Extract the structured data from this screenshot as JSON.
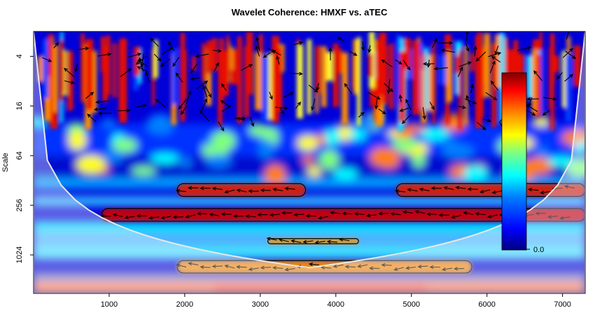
{
  "chart_data": {
    "type": "heatmap",
    "title": "Wavelet Coherence: HMXF vs. aTEC",
    "xlabel": "",
    "ylabel": "Scale",
    "x_range": [
      0,
      7300
    ],
    "x_ticks": [
      1000,
      2000,
      3000,
      4000,
      5000,
      6000,
      7000
    ],
    "y_scale": "log2",
    "y_range": [
      2,
      3000
    ],
    "y_ticks": [
      4,
      16,
      64,
      256,
      1024
    ],
    "colorbar": {
      "min": 0.0,
      "max": 1.0,
      "tick_labels": [
        "0.0"
      ],
      "palette": [
        "#00007f",
        "#0000ff",
        "#007fff",
        "#00ffff",
        "#7fff7f",
        "#ffff00",
        "#ff7f00",
        "#ff0000",
        "#7f0000"
      ]
    },
    "coherent_regions": [
      {
        "scale_band": "2-24",
        "x_range": [
          0,
          7300
        ],
        "coherence": "high, intermittent"
      },
      {
        "scale_band": "140-200",
        "x_range": [
          1900,
          3600
        ],
        "coherence": 0.85
      },
      {
        "scale_band": "140-200",
        "x_range": [
          4800,
          7300
        ],
        "coherence": 0.9
      },
      {
        "scale_band": "280-400",
        "x_range": [
          900,
          7300
        ],
        "coherence": 0.95
      },
      {
        "scale_band": "650-750",
        "x_range": [
          3100,
          4300
        ],
        "coherence": 0.75
      },
      {
        "scale_band": "1200-1700",
        "x_range": [
          1900,
          5800
        ],
        "coherence": 0.7
      }
    ],
    "cone_of_influence": true,
    "phase_arrows": true,
    "legend": "right colorbar"
  }
}
